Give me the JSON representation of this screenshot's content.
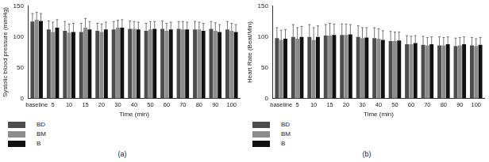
{
  "chart_data": [
    {
      "type": "bar",
      "y_label": "Systolic blood pressure (mmHg)",
      "x_label": "Time (min)",
      "annotations": [
        "(a)"
      ],
      "categories": [
        "baseline",
        "5",
        "10",
        "15",
        "20",
        "30",
        "40",
        "50",
        "60",
        "70",
        "80",
        "90",
        "100"
      ],
      "series": [
        {
          "name": "BD",
          "color": "#4d4d4d",
          "values": [
            125,
            112,
            110,
            108,
            110,
            112,
            113,
            110,
            113,
            113,
            112,
            113,
            112
          ],
          "errors": [
            13,
            14,
            15,
            14,
            12,
            13,
            13,
            12,
            13,
            12,
            13,
            12,
            13
          ]
        },
        {
          "name": "BM",
          "color": "#8c8c8c",
          "values": [
            128,
            108,
            107,
            115,
            108,
            115,
            113,
            112,
            110,
            112,
            112,
            110,
            110
          ],
          "errors": [
            12,
            16,
            14,
            15,
            13,
            12,
            12,
            13,
            12,
            13,
            12,
            13,
            12
          ]
        },
        {
          "name": "B",
          "color": "#111111",
          "values": [
            126,
            115,
            108,
            112,
            112,
            115,
            112,
            113,
            112,
            112,
            110,
            108,
            108
          ],
          "errors": [
            12,
            13,
            14,
            13,
            12,
            13,
            12,
            12,
            12,
            12,
            12,
            12,
            12
          ]
        }
      ],
      "ylim": [
        0,
        150
      ],
      "yticks": [
        0,
        50,
        100,
        150
      ],
      "grid": false,
      "legend": "bottom left"
    },
    {
      "type": "bar",
      "y_label": "Heart Rate (Beat/Min)",
      "x_label": "Time (min)",
      "annotations": [
        "(b)"
      ],
      "categories": [
        "baseline",
        "5",
        "10",
        "15",
        "20",
        "30",
        "40",
        "50",
        "60",
        "70",
        "80",
        "90",
        "100"
      ],
      "series": [
        {
          "name": "BD",
          "color": "#4d4d4d",
          "values": [
            98,
            100,
            100,
            102,
            103,
            100,
            98,
            93,
            88,
            87,
            86,
            85,
            86
          ],
          "errors": [
            17,
            20,
            20,
            18,
            18,
            18,
            17,
            16,
            14,
            14,
            14,
            13,
            13
          ]
        },
        {
          "name": "BM",
          "color": "#8c8c8c",
          "values": [
            95,
            97,
            95,
            102,
            103,
            98,
            97,
            93,
            88,
            86,
            86,
            86,
            85
          ],
          "errors": [
            16,
            18,
            20,
            20,
            18,
            17,
            16,
            15,
            13,
            13,
            13,
            13,
            12
          ]
        },
        {
          "name": "B",
          "color": "#111111",
          "values": [
            97,
            100,
            100,
            103,
            104,
            99,
            95,
            94,
            90,
            88,
            88,
            88,
            87
          ],
          "errors": [
            15,
            17,
            18,
            18,
            16,
            16,
            15,
            14,
            12,
            12,
            12,
            12,
            12
          ]
        }
      ],
      "ylim": [
        0,
        150
      ],
      "yticks": [
        0,
        50,
        100,
        150
      ],
      "grid": false,
      "legend": "bottom left"
    }
  ]
}
